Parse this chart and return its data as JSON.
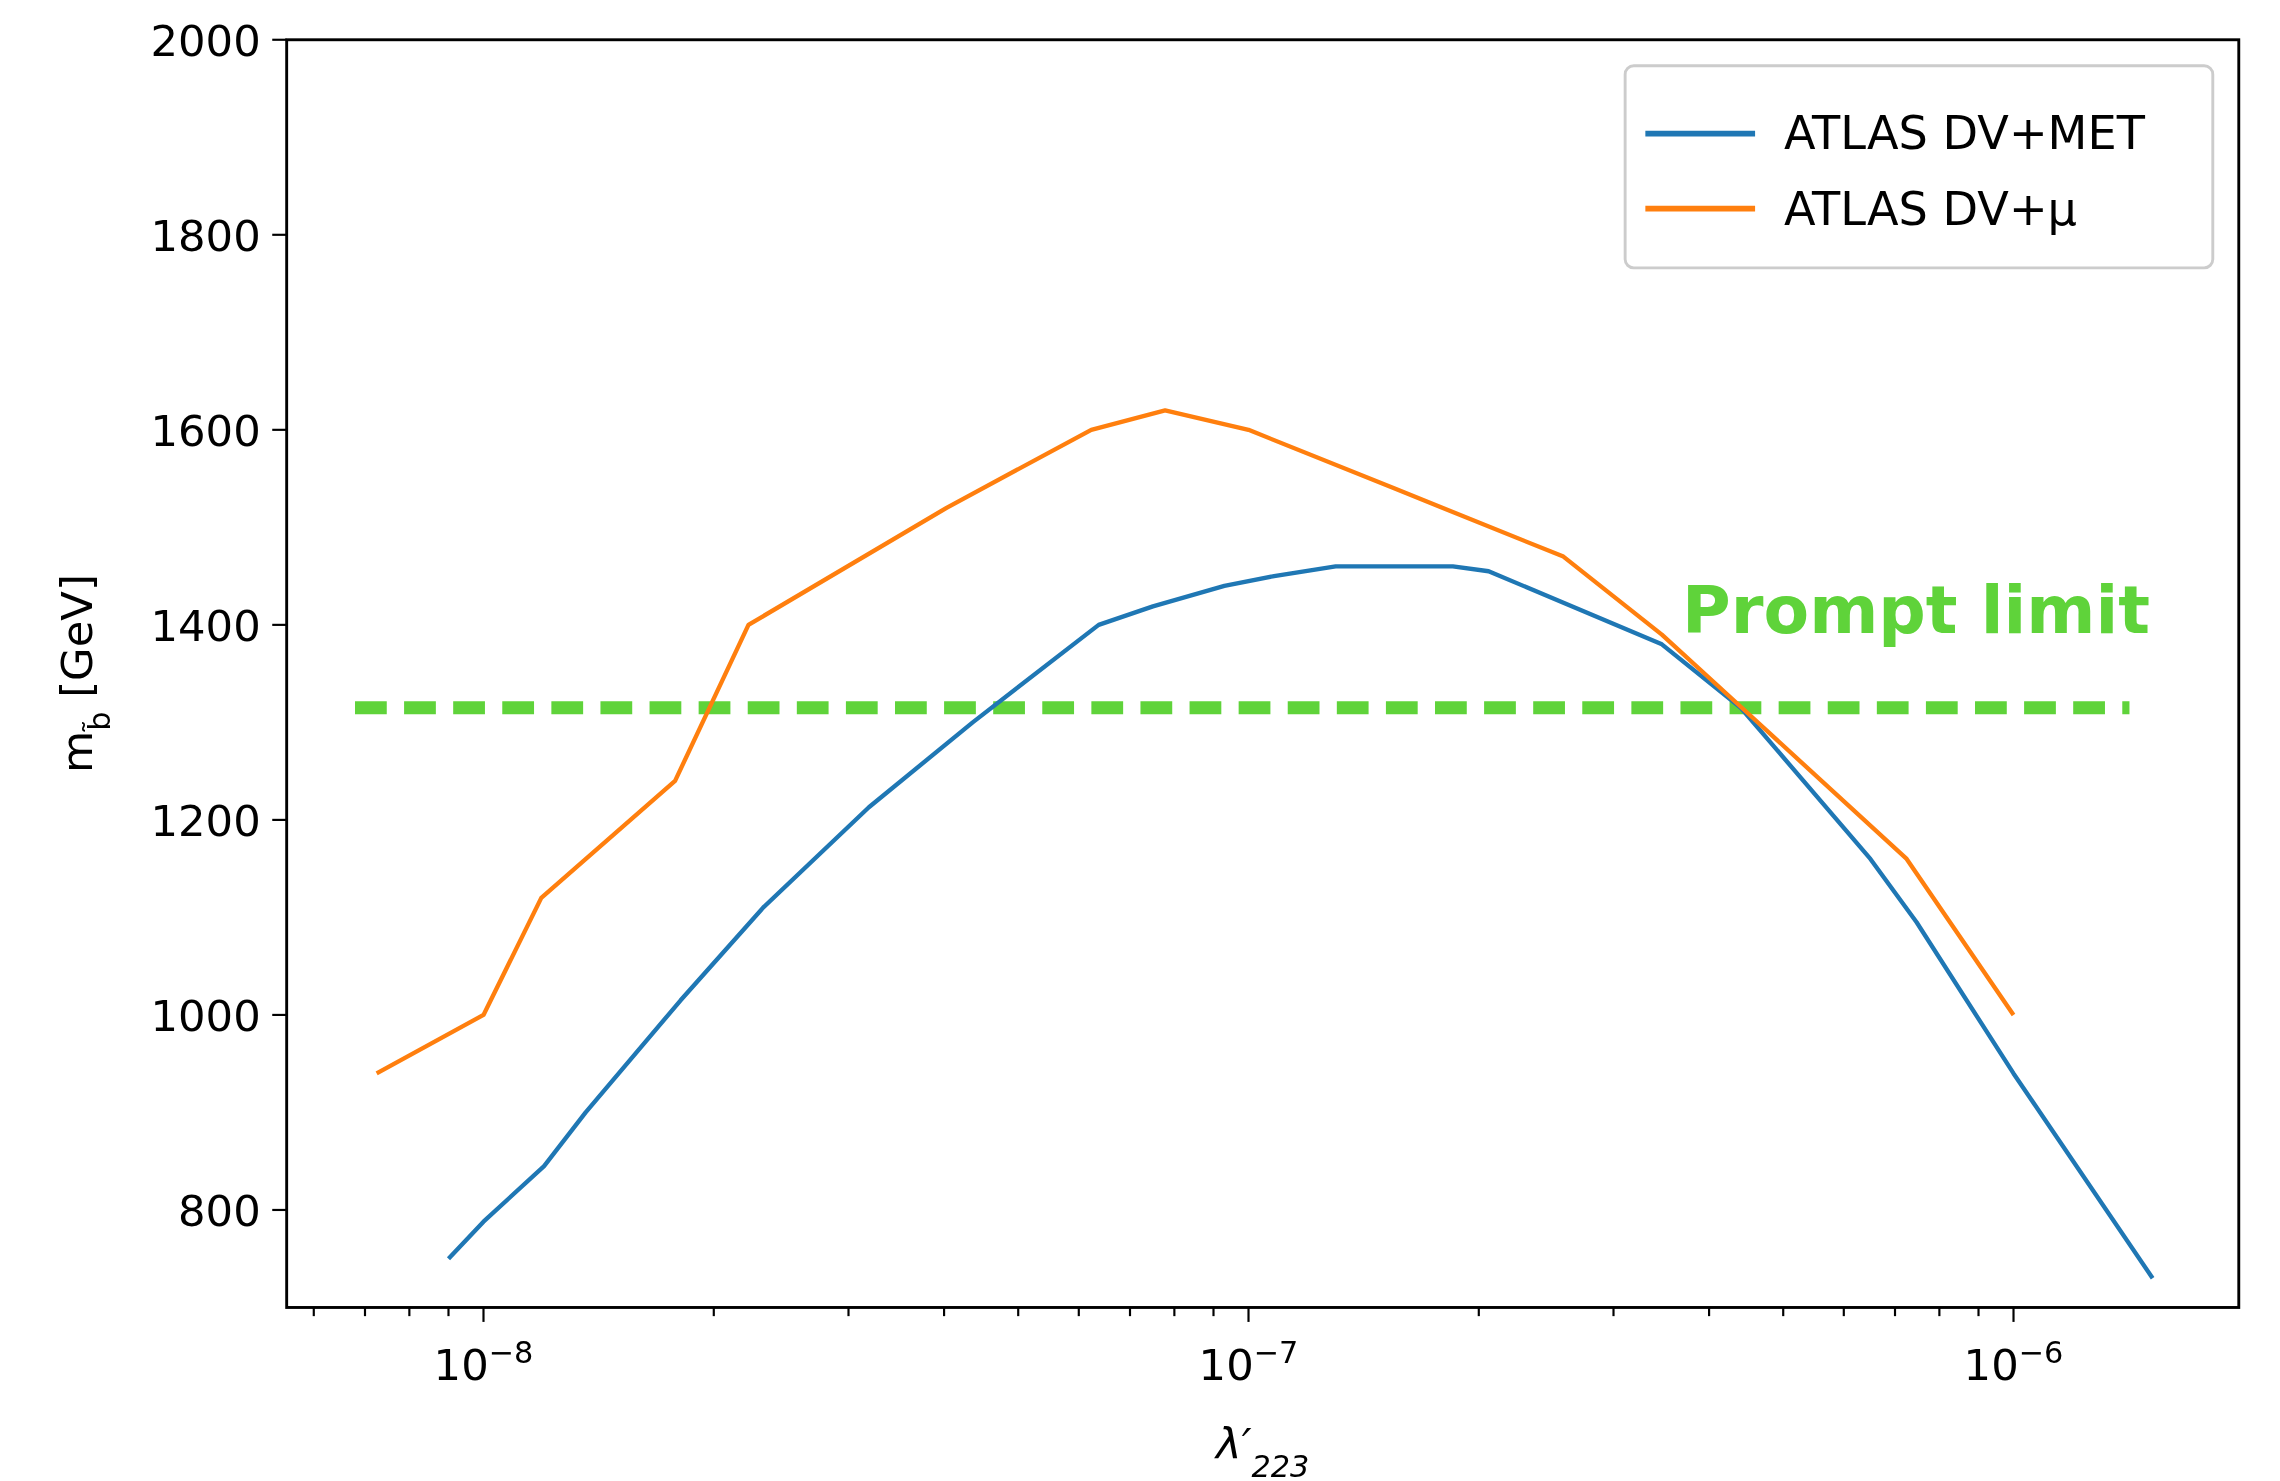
{
  "chart_data": {
    "type": "line",
    "xlabel": "λ′$_{223}$",
    "ylabel": "m$_{b̃}$ [GeV]",
    "log": "x",
    "xlim": [
      5.53e-09,
      1.97e-06
    ],
    "ylim": [
      700,
      2000
    ],
    "xticks": [
      {
        "value": 6e-09,
        "label": null
      },
      {
        "value": 7e-09,
        "label": null
      },
      {
        "value": 8e-09,
        "label": null
      },
      {
        "value": 9e-09,
        "label": null
      },
      {
        "value": 1e-08,
        "label": "10$^{−8}$"
      },
      {
        "value": 2e-08,
        "label": null
      },
      {
        "value": 3e-08,
        "label": null
      },
      {
        "value": 4e-08,
        "label": null
      },
      {
        "value": 5e-08,
        "label": null
      },
      {
        "value": 6e-08,
        "label": null
      },
      {
        "value": 7e-08,
        "label": null
      },
      {
        "value": 8e-08,
        "label": null
      },
      {
        "value": 9e-08,
        "label": null
      },
      {
        "value": 1e-07,
        "label": "10$^{−7}$"
      },
      {
        "value": 2e-07,
        "label": null
      },
      {
        "value": 3e-07,
        "label": null
      },
      {
        "value": 4e-07,
        "label": null
      },
      {
        "value": 5e-07,
        "label": null
      },
      {
        "value": 6e-07,
        "label": null
      },
      {
        "value": 7e-07,
        "label": null
      },
      {
        "value": 8e-07,
        "label": null
      },
      {
        "value": 9e-07,
        "label": null
      },
      {
        "value": 1e-06,
        "label": "10$^{−6}$"
      }
    ],
    "yticks": [
      800,
      1000,
      1200,
      1400,
      1600,
      1800,
      2000
    ],
    "grid": false,
    "legend": "top right",
    "line_style": "solid",
    "series": [
      {
        "name": "ATLAS DV+MET",
        "color": "#1f77b4",
        "x": [
          9e-09,
          1e-08,
          1.2e-08,
          1.36e-08,
          1.81e-08,
          2.32e-08,
          3.19e-08,
          4.36e-08,
          6.37e-08,
          7.5e-08,
          9.3e-08,
          1.08e-07,
          1.3e-07,
          1.85e-07,
          2.06e-07,
          3.47e-07,
          4.4e-07,
          6.5e-07,
          7.47e-07,
          1e-06,
          1.52e-06
        ],
        "values": [
          750,
          788,
          845,
          900,
          1015,
          1110,
          1213,
          1300,
          1400,
          1419,
          1440,
          1450,
          1460,
          1460,
          1455,
          1380,
          1315,
          1160,
          1095,
          940,
          730
        ]
      },
      {
        "name": "ATLAS DV+μ",
        "color": "#ff7f0e",
        "x": [
          7.25e-09,
          1e-08,
          1.19e-08,
          1.78e-08,
          2.22e-08,
          4.03e-08,
          6.23e-08,
          7.78e-08,
          1e-07,
          1.55e-07,
          2.58e-07,
          3.47e-07,
          4.4e-07,
          7.25e-07,
          1e-06
        ],
        "values": [
          940,
          1000,
          1120,
          1240,
          1400,
          1520,
          1600,
          1620,
          1600,
          1540,
          1470,
          1390,
          1316,
          1160,
          1000
        ]
      }
    ],
    "ref_lines": [
      {
        "axis": "y",
        "value": 1315,
        "label": "Prompt limit",
        "color": "#5fd33a",
        "line_style": "dashed"
      }
    ]
  }
}
